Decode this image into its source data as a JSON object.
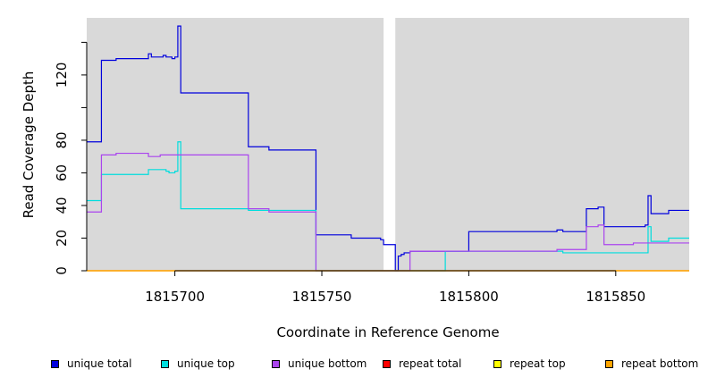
{
  "chart_data": {
    "type": "line",
    "title": "",
    "xlabel": "Coordinate in Reference Genome",
    "ylabel": "Read Coverage Depth",
    "xlim": [
      1815670,
      1815875
    ],
    "ylim": [
      0,
      155
    ],
    "xticks": [
      1815700,
      1815750,
      1815800,
      1815850
    ],
    "yticks": [
      0,
      20,
      40,
      60,
      80,
      120
    ],
    "yticks_unlabeled": [
      100,
      140
    ],
    "gap": [
      1815771,
      1815775
    ],
    "grid": false,
    "legend_position": "bottom",
    "series": [
      {
        "name": "unique total",
        "color": "#0000dd",
        "x": [
          1815670,
          1815675,
          1815680,
          1815684,
          1815690,
          1815691,
          1815692,
          1815695,
          1815696,
          1815697,
          1815699,
          1815700,
          1815701,
          1815702,
          1815712,
          1815724,
          1815725,
          1815732,
          1815747,
          1815748,
          1815758,
          1815760,
          1815770,
          1815771,
          1815775,
          1815776,
          1815777,
          1815778,
          1815780,
          1815791,
          1815800,
          1815829,
          1815830,
          1815832,
          1815840,
          1815844,
          1815846,
          1815856,
          1815860,
          1815861,
          1815862,
          1815868,
          1815875
        ],
        "y": [
          79,
          129,
          130,
          130,
          130,
          133,
          131,
          131,
          132,
          131,
          130,
          131,
          150,
          109,
          109,
          109,
          76,
          74,
          74,
          22,
          22,
          20,
          19,
          16,
          0,
          9,
          10,
          11,
          12,
          12,
          24,
          24,
          25,
          24,
          38,
          39,
          27,
          27,
          28,
          46,
          35,
          37,
          37
        ]
      },
      {
        "name": "unique top",
        "color": "#00dddd",
        "x": [
          1815670,
          1815675,
          1815680,
          1815690,
          1815691,
          1815692,
          1815697,
          1815698,
          1815700,
          1815701,
          1815702,
          1815712,
          1815724,
          1815725,
          1815732,
          1815747,
          1815748,
          1815770,
          1815775,
          1815791,
          1815792,
          1815829,
          1815830,
          1815832,
          1815840,
          1815860,
          1815861,
          1815862,
          1815868,
          1815875
        ],
        "y": [
          43,
          59,
          59,
          59,
          62,
          62,
          61,
          60,
          61,
          79,
          38,
          38,
          38,
          37,
          37,
          37,
          0,
          0,
          0,
          0,
          12,
          12,
          12,
          11,
          11,
          11,
          27,
          18,
          20,
          20
        ]
      },
      {
        "name": "unique bottom",
        "color": "#aa44ee",
        "x": [
          1815670,
          1815675,
          1815680,
          1815690,
          1815691,
          1815692,
          1815695,
          1815700,
          1815701,
          1815712,
          1815724,
          1815725,
          1815732,
          1815747,
          1815748,
          1815770,
          1815775,
          1815780,
          1815791,
          1815829,
          1815830,
          1815840,
          1815844,
          1815846,
          1815856,
          1815875
        ],
        "y": [
          36,
          71,
          72,
          72,
          70,
          70,
          71,
          71,
          71,
          71,
          71,
          38,
          36,
          36,
          0,
          0,
          0,
          12,
          12,
          12,
          13,
          27,
          28,
          16,
          17,
          17
        ]
      },
      {
        "name": "repeat total",
        "color": "#ff0000",
        "x": [
          1815670,
          1815875
        ],
        "y": [
          0,
          0
        ]
      },
      {
        "name": "repeat top",
        "color": "#ffff00",
        "x": [
          1815670,
          1815875
        ],
        "y": [
          0,
          0
        ]
      },
      {
        "name": "repeat bottom",
        "color": "#ffa500",
        "x": [
          1815670,
          1815875
        ],
        "y": [
          0,
          0
        ]
      }
    ]
  }
}
